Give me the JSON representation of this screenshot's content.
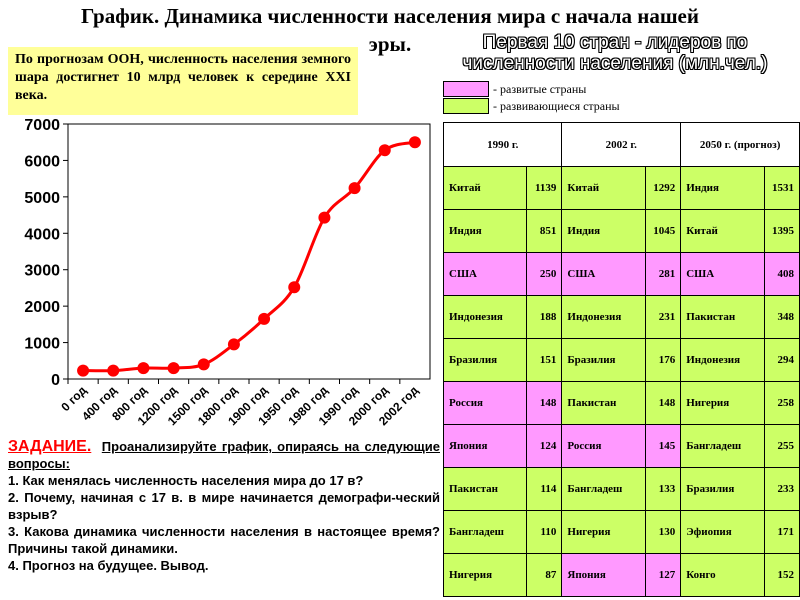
{
  "title": "График. Динамика численности населения мира с начала нашей эры.",
  "note": "По прогнозам ООН, численность населения земного шара достигнет 10 млрд человек к середине XXI века.",
  "top10_title": "Первая 10 стран - лидеров по численности населения (млн.чел.)",
  "legend": {
    "developed": "- развитые страны",
    "developing": "- развивающиеся страны",
    "developed_color": "#ff99ff",
    "developing_color": "#ccff66"
  },
  "chart_data": {
    "type": "line",
    "title": "",
    "xlabel": "",
    "ylabel": "",
    "categories": [
      "0 год",
      "400 год",
      "800 год",
      "1200 год",
      "1500 год",
      "1800 год",
      "1900 год",
      "1950 год",
      "1980 год",
      "1990 год",
      "2000 год",
      "2002 год"
    ],
    "series": [
      {
        "values": [
          230,
          230,
          300,
          300,
          400,
          950,
          1650,
          2520,
          4430,
          5240,
          6280,
          6500
        ],
        "color": "#ff0000"
      }
    ],
    "ylim": [
      0,
      7000
    ],
    "yticks": [
      0,
      1000,
      2000,
      3000,
      4000,
      5000,
      6000,
      7000
    ],
    "grid": false,
    "smooth": true
  },
  "task": {
    "heading": "ЗАДАНИЕ.",
    "intro": "Проанализируйте график, опираясь на следующие вопросы:",
    "q1": "1.  Как менялась численность населения мира до 17 в?",
    "q2": "2.  Почему, начиная с 17 в. в мире начинается демографи-ческий взрыв?",
    "q3": "3.  Какова динамика численности населения в настоящее время? Причины такой динамики.",
    "q4": "4.  Прогноз на будущее.  Вывод."
  },
  "table": {
    "headers": [
      "1990 г.",
      "2002 г.",
      "2050 г. (прогноз)"
    ],
    "rows": [
      [
        [
          "Китай",
          "1139",
          "ing"
        ],
        [
          "Китай",
          "1292",
          "ing"
        ],
        [
          "Индия",
          "1531",
          "ing"
        ]
      ],
      [
        [
          "Индия",
          "851",
          "ing"
        ],
        [
          "Индия",
          "1045",
          "ing"
        ],
        [
          "Китай",
          "1395",
          "ing"
        ]
      ],
      [
        [
          "США",
          "250",
          "dev"
        ],
        [
          "США",
          "281",
          "dev"
        ],
        [
          "США",
          "408",
          "dev"
        ]
      ],
      [
        [
          "Индонезия",
          "188",
          "ing"
        ],
        [
          "Индонезия",
          "231",
          "ing"
        ],
        [
          "Пакистан",
          "348",
          "ing"
        ]
      ],
      [
        [
          "Бразилия",
          "151",
          "ing"
        ],
        [
          "Бразилия",
          "176",
          "ing"
        ],
        [
          "Индонезия",
          "294",
          "ing"
        ]
      ],
      [
        [
          "Россия",
          "148",
          "dev"
        ],
        [
          "Пакистан",
          "148",
          "ing"
        ],
        [
          "Нигерия",
          "258",
          "ing"
        ]
      ],
      [
        [
          "Япония",
          "124",
          "dev"
        ],
        [
          "Россия",
          "145",
          "dev"
        ],
        [
          "Бангладеш",
          "255",
          "ing"
        ]
      ],
      [
        [
          "Пакистан",
          "114",
          "ing"
        ],
        [
          "Бангладеш",
          "133",
          "ing"
        ],
        [
          "Бразилия",
          "233",
          "ing"
        ]
      ],
      [
        [
          "Бангладеш",
          "110",
          "ing"
        ],
        [
          "Нигерия",
          "130",
          "ing"
        ],
        [
          "Эфиопия",
          "171",
          "ing"
        ]
      ],
      [
        [
          "Нигерия",
          "87",
          "ing"
        ],
        [
          "Япония",
          "127",
          "dev"
        ],
        [
          "Конго",
          "152",
          "ing"
        ]
      ]
    ]
  }
}
